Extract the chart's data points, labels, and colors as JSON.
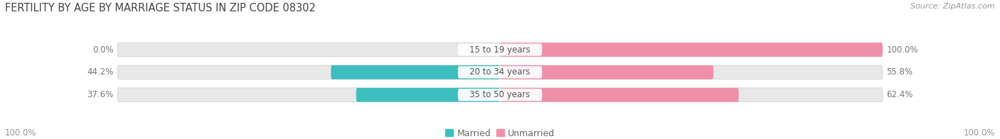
{
  "title": "FERTILITY BY AGE BY MARRIAGE STATUS IN ZIP CODE 08302",
  "source": "Source: ZipAtlas.com",
  "categories": [
    "15 to 19 years",
    "20 to 34 years",
    "35 to 50 years"
  ],
  "married": [
    0.0,
    44.2,
    37.6
  ],
  "unmarried": [
    100.0,
    55.8,
    62.4
  ],
  "married_color": "#3dbfbf",
  "unmarried_color": "#f090a8",
  "bar_bg_color": "#e8e8e8",
  "bar_height": 0.62,
  "title_fontsize": 10.5,
  "source_fontsize": 8,
  "label_fontsize": 8.5,
  "category_fontsize": 8.5,
  "axis_label_left": "100.0%",
  "axis_label_right": "100.0%",
  "background_color": "#ffffff",
  "xlim": [
    -115,
    115
  ],
  "bar_gap": 1.2
}
